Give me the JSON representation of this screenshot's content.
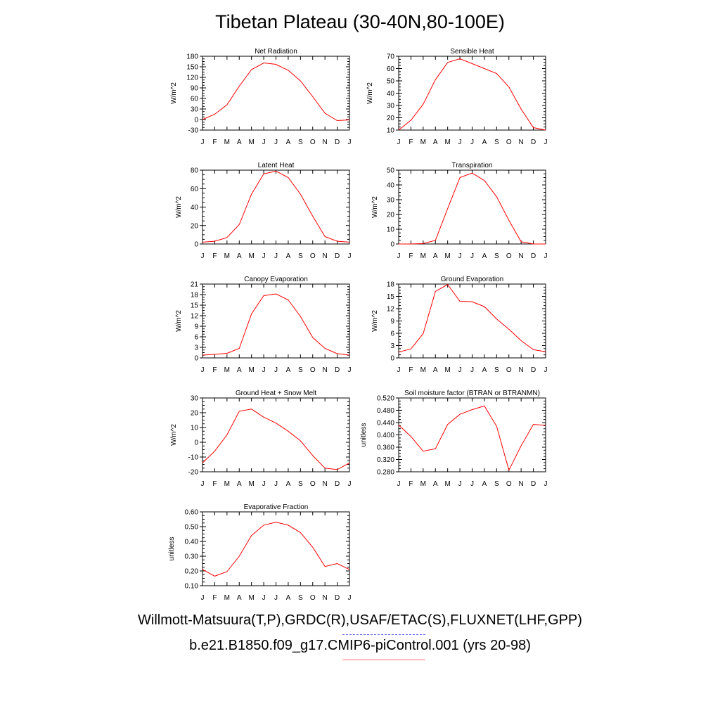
{
  "title": "Tibetan Plateau (30-40N,80-100E)",
  "footer": {
    "obs": "Willmott-Matsuura(T,P),GRDC(R),USAF/ETAC(S),FLUXNET(LHF,GPP)",
    "model": "b.e21.B1850.f09_g17.CMIP6-piControl.001 (yrs 20-98)"
  },
  "colors": {
    "model_line": "#ff0000",
    "obs_line": "#6b6bff",
    "axes": "#000000"
  },
  "chart_data": [
    {
      "type": "line",
      "title": "Net Radiation",
      "ylabel": "W/m^2",
      "categories": [
        "J",
        "F",
        "M",
        "A",
        "M",
        "J",
        "J",
        "A",
        "S",
        "O",
        "N",
        "D",
        "J"
      ],
      "ylim": [
        -30,
        180
      ],
      "yticks": [
        "-30",
        "0",
        "30",
        "60",
        "90",
        "120",
        "150",
        "180"
      ],
      "series": [
        {
          "values": [
            0,
            15,
            42,
            95,
            142,
            161,
            157,
            140,
            110,
            65,
            18,
            -3,
            -1
          ]
        }
      ]
    },
    {
      "type": "line",
      "title": "Sensible Heat",
      "ylabel": "W/m^2",
      "categories": [
        "J",
        "F",
        "M",
        "A",
        "M",
        "J",
        "J",
        "A",
        "S",
        "O",
        "N",
        "D",
        "J"
      ],
      "ylim": [
        10,
        70
      ],
      "yticks": [
        "10",
        "20",
        "30",
        "40",
        "50",
        "60",
        "70"
      ],
      "series": [
        {
          "values": [
            10,
            18,
            31,
            51,
            65,
            68,
            64,
            60,
            56,
            45,
            27,
            12,
            10
          ]
        }
      ]
    },
    {
      "type": "line",
      "title": "Latent Heat",
      "ylabel": "W/m^2",
      "categories": [
        "J",
        "F",
        "M",
        "A",
        "M",
        "J",
        "J",
        "A",
        "S",
        "O",
        "N",
        "D",
        "J"
      ],
      "ylim": [
        0,
        80
      ],
      "yticks": [
        "0",
        "20",
        "40",
        "60",
        "80"
      ],
      "series": [
        {
          "values": [
            2,
            3,
            7,
            21,
            54,
            76,
            79,
            72,
            54,
            30,
            8,
            3,
            2
          ]
        }
      ]
    },
    {
      "type": "line",
      "title": "Transpiration",
      "ylabel": "W/m^2",
      "categories": [
        "J",
        "F",
        "M",
        "A",
        "M",
        "J",
        "J",
        "A",
        "S",
        "O",
        "N",
        "D",
        "J"
      ],
      "ylim": [
        0,
        50
      ],
      "yticks": [
        "0",
        "10",
        "20",
        "30",
        "40",
        "50"
      ],
      "series": [
        {
          "values": [
            0,
            0,
            0.3,
            2.5,
            24,
            45,
            48,
            43,
            32,
            16,
            1.5,
            0,
            0
          ]
        }
      ]
    },
    {
      "type": "line",
      "title": "Canopy Evaporation",
      "ylabel": "W/m^2",
      "categories": [
        "J",
        "F",
        "M",
        "A",
        "M",
        "J",
        "J",
        "A",
        "S",
        "O",
        "N",
        "D",
        "J"
      ],
      "ylim": [
        0,
        21
      ],
      "yticks": [
        "0",
        "3",
        "6",
        "9",
        "12",
        "15",
        "18",
        "21"
      ],
      "series": [
        {
          "values": [
            0.8,
            1.0,
            1.3,
            2.7,
            12.5,
            17.7,
            18.2,
            16.5,
            11.8,
            5.8,
            2.7,
            1.2,
            0.8
          ]
        }
      ]
    },
    {
      "type": "line",
      "title": "Ground Evaporation",
      "ylabel": "W/m^2",
      "categories": [
        "J",
        "F",
        "M",
        "A",
        "M",
        "J",
        "J",
        "A",
        "S",
        "O",
        "N",
        "D",
        "J"
      ],
      "ylim": [
        0,
        18
      ],
      "yticks": [
        "0",
        "3",
        "6",
        "9",
        "12",
        "15",
        "18"
      ],
      "series": [
        {
          "values": [
            1.4,
            2.2,
            5.9,
            16.2,
            17.9,
            13.8,
            13.7,
            12.5,
            9.5,
            7.0,
            4.2,
            2.0,
            1.5
          ]
        }
      ]
    },
    {
      "type": "line",
      "title": "Ground Heat + Snow Melt",
      "ylabel": "W/m^2",
      "categories": [
        "J",
        "F",
        "M",
        "A",
        "M",
        "J",
        "J",
        "A",
        "S",
        "O",
        "N",
        "D",
        "J"
      ],
      "ylim": [
        -20,
        30
      ],
      "yticks": [
        "-20",
        "-10",
        "0",
        "10",
        "20",
        "30"
      ],
      "series": [
        {
          "values": [
            -14,
            -6,
            5,
            21,
            22.5,
            17,
            13,
            7.5,
            1,
            -9,
            -17.5,
            -18.5,
            -14
          ]
        }
      ]
    },
    {
      "type": "line",
      "title": "Soil moisture factor (BTRAN or BTRANMN)",
      "ylabel": "unitless",
      "categories": [
        "J",
        "F",
        "M",
        "A",
        "M",
        "J",
        "J",
        "A",
        "S",
        "O",
        "N",
        "D",
        "J"
      ],
      "ylim": [
        0.28,
        0.52
      ],
      "yticks": [
        "0.280",
        "0.320",
        "0.360",
        "0.400",
        "0.440",
        "0.480",
        "0.520"
      ],
      "series": [
        {
          "values": [
            0.432,
            0.395,
            0.347,
            0.355,
            0.434,
            0.467,
            0.482,
            0.494,
            0.428,
            0.285,
            0.365,
            0.434,
            0.431
          ]
        }
      ]
    },
    {
      "type": "line",
      "title": "Evaporative Fraction",
      "ylabel": "unitless",
      "categories": [
        "J",
        "F",
        "M",
        "A",
        "M",
        "J",
        "J",
        "A",
        "S",
        "O",
        "N",
        "D",
        "J"
      ],
      "ylim": [
        0.1,
        0.6
      ],
      "yticks": [
        "0.10",
        "0.20",
        "0.30",
        "0.40",
        "0.50",
        "0.60"
      ],
      "series": [
        {
          "values": [
            0.21,
            0.165,
            0.195,
            0.3,
            0.44,
            0.51,
            0.53,
            0.51,
            0.46,
            0.36,
            0.23,
            0.25,
            0.21
          ]
        }
      ]
    }
  ]
}
